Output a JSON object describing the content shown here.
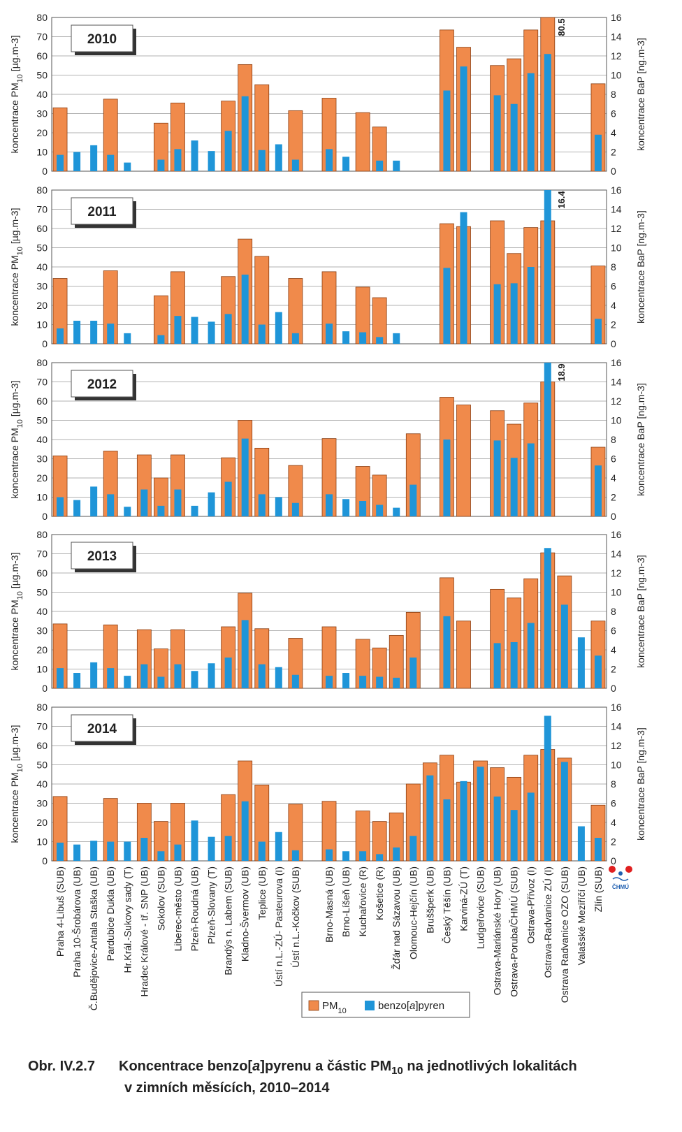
{
  "colors": {
    "pm10": "#f08a4b",
    "pm10_edge": "#8a3e12",
    "bap": "#1f95d8",
    "grid": "#999999"
  },
  "legend": {
    "pm10_base": "PM",
    "pm10_sub": "10",
    "bap_pre": "benzo[",
    "bap_italic": "a",
    "bap_post": "]pyren"
  },
  "caption": {
    "number": "Obr. IV.2.7",
    "pre": "Koncentrace benzo[",
    "italic": "a",
    "mid": "]pyrenu a částic PM",
    "sub": "10",
    "post": " na jednotlivých lokalitách",
    "line2": "v zimních měsících, 2010–2014"
  },
  "logo_text": "ČHMÚ",
  "chart_data": {
    "type": "bar",
    "categories": [
      "Praha 4-Libuš (SUB)",
      "Praha 10-Šrobárova (UB)",
      "Č.Budějovice-Antala Staška (UB)",
      "Pardubice Dukla (UB)",
      "Hr.Král.-Sukovy sady (T)",
      "Hradec Králové - tř. SNP (UB)",
      "Sokolov (SUB)",
      "Liberec-město (UB)",
      "Plzeň-Roudná (UB)",
      "Plzeň-Slovany (T)",
      "Brandýs n. Labem (SUB)",
      "Kladno-Švermov (UB)",
      "Teplice (UB)",
      "Ústí n.L.-ZÚ- Pasteurova (I)",
      "Ústí n.L.-Kočkov (SUB)",
      "",
      "Brno-Masná (UB)",
      "Brno-Líšeň (UB)",
      "Kuchařovice (R)",
      "Košetice (R)",
      "Žďár nad Sázavou (UB)",
      "Olomouc-Hejčín (UB)",
      "Bruššperk (UB)",
      "Český Těšín (UB)",
      "Karviná-ZÚ (T)",
      "Ludgeřovice (SUB)",
      "Ostrava-Mariánské Hory (UB)",
      "Ostrava-Poruba/ČHMÚ (SUB)",
      "Ostrava-Přívoz (I)",
      "Ostrava-Radvanice ZÚ (I)",
      "Ostrava Radvanice OZO (SUB)",
      "Valašské Meziříčí (UB)",
      "Zlín (SUB)"
    ],
    "ylabel_left": "koncentrace PM10 [µg.m-3]",
    "ylabel_right": "koncentrace BaP [ng.m-3]",
    "ylim_left": [
      0,
      80
    ],
    "ylim_right": [
      0,
      16
    ],
    "grid": true,
    "legend_position": "bottom",
    "panels": [
      {
        "year": "2010",
        "overflow_label": "80.5",
        "series": [
          {
            "name": "PM10",
            "values": [
              33,
              null,
              null,
              37.5,
              null,
              null,
              25,
              35.5,
              null,
              null,
              36.5,
              55.5,
              45,
              null,
              31.5,
              null,
              38,
              null,
              30.5,
              23,
              null,
              null,
              null,
              73.5,
              64.5,
              null,
              55,
              58.5,
              73.5,
              80.5,
              null,
              null,
              45.5
            ]
          },
          {
            "name": "benzo[a]pyren",
            "values": [
              1.7,
              2,
              2.7,
              1.7,
              0.9,
              null,
              1.2,
              2.3,
              3.2,
              2.1,
              4.2,
              7.8,
              2.2,
              2.8,
              1.2,
              null,
              2.3,
              1.5,
              null,
              1.1,
              1.1,
              null,
              null,
              8.4,
              10.9,
              null,
              7.9,
              7,
              10.2,
              12.2,
              null,
              null,
              3.8
            ]
          }
        ]
      },
      {
        "year": "2011",
        "overflow_label": "16.4",
        "series": [
          {
            "name": "PM10",
            "values": [
              34,
              null,
              null,
              38,
              null,
              null,
              25,
              37.5,
              null,
              null,
              35,
              54.5,
              45.5,
              null,
              34,
              null,
              37.5,
              null,
              29.5,
              24,
              null,
              null,
              null,
              62.5,
              61,
              null,
              64,
              47,
              60.5,
              64,
              null,
              null,
              40.5
            ]
          },
          {
            "name": "benzo[a]pyren",
            "values": [
              1.6,
              2.4,
              2.4,
              2.1,
              1.1,
              null,
              0.9,
              2.9,
              2.8,
              2.3,
              3.1,
              7.2,
              2,
              3.3,
              1.1,
              null,
              2.1,
              1.3,
              1.2,
              0.7,
              1.1,
              null,
              null,
              7.9,
              13.7,
              null,
              6.2,
              6.3,
              8,
              16.4,
              null,
              null,
              2.6
            ]
          }
        ]
      },
      {
        "year": "2012",
        "overflow_label": "18.9",
        "series": [
          {
            "name": "PM10",
            "values": [
              31.5,
              null,
              null,
              34,
              null,
              32,
              20,
              32,
              null,
              null,
              30.5,
              50,
              35.5,
              null,
              26.5,
              null,
              40.5,
              null,
              26,
              21.5,
              null,
              43,
              null,
              62,
              58,
              null,
              55,
              48,
              59,
              70,
              null,
              null,
              36
            ]
          },
          {
            "name": "benzo[a]pyren",
            "values": [
              2,
              1.7,
              3.1,
              2.3,
              1,
              2.8,
              1.1,
              2.8,
              1.1,
              2.5,
              3.6,
              8.1,
              2.3,
              2,
              1.4,
              null,
              2.3,
              1.8,
              1.6,
              1.2,
              0.9,
              3.3,
              null,
              8,
              null,
              null,
              7.9,
              6.1,
              7.6,
              18.9,
              null,
              null,
              5.3
            ]
          }
        ]
      },
      {
        "year": "2013",
        "overflow_label": "",
        "series": [
          {
            "name": "PM10",
            "values": [
              33.5,
              null,
              null,
              33,
              null,
              30.5,
              20.5,
              30.5,
              null,
              null,
              32,
              49.5,
              31,
              null,
              26,
              null,
              32,
              null,
              25.5,
              21,
              27.5,
              39.5,
              null,
              57.5,
              35,
              null,
              51.5,
              47,
              57,
              70.5,
              58.5,
              null,
              35
            ]
          },
          {
            "name": "benzo[a]pyren",
            "values": [
              2.1,
              1.6,
              2.7,
              2.1,
              1.3,
              2.5,
              1.2,
              2.5,
              1.8,
              2.6,
              3.2,
              7.1,
              2.5,
              2.2,
              1.4,
              null,
              1.3,
              1.6,
              1.3,
              1.2,
              1.1,
              3.2,
              null,
              7.5,
              null,
              null,
              4.7,
              4.8,
              6.8,
              14.6,
              8.7,
              5.3,
              3.4
            ]
          }
        ]
      },
      {
        "year": "2014",
        "overflow_label": "",
        "series": [
          {
            "name": "PM10",
            "values": [
              33.5,
              null,
              null,
              32.5,
              null,
              30,
              20.5,
              30,
              null,
              null,
              34.5,
              52,
              39.5,
              null,
              29.5,
              null,
              31,
              null,
              26,
              20.5,
              25,
              40,
              51,
              55,
              41,
              52,
              48.5,
              43.5,
              55,
              58,
              53.5,
              null,
              29
            ]
          },
          {
            "name": "benzo[a]pyren",
            "values": [
              1.9,
              1.7,
              2.1,
              2,
              2,
              2.4,
              1,
              1.7,
              4.2,
              2.5,
              2.6,
              6.2,
              2,
              3,
              1.1,
              null,
              1.2,
              1,
              1,
              0.7,
              1.4,
              2.6,
              8.9,
              6.4,
              8.3,
              9.8,
              6.7,
              5.3,
              7.1,
              15.1,
              10.3,
              3.6,
              2.4
            ]
          }
        ]
      }
    ]
  }
}
